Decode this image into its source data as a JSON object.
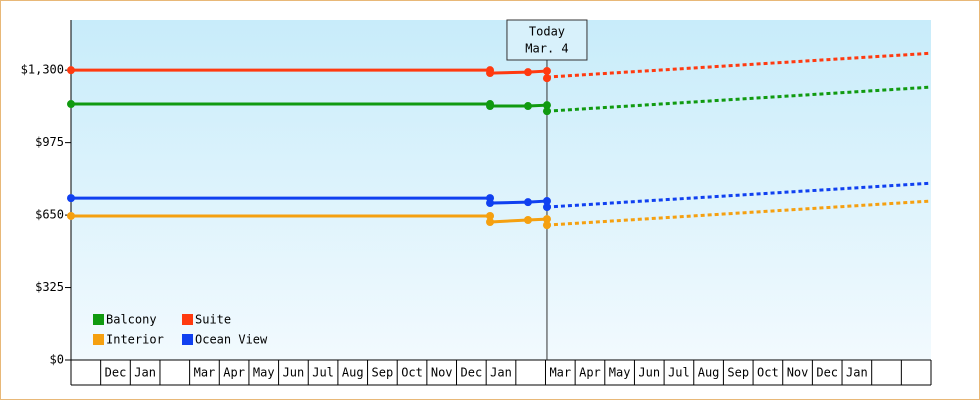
{
  "chart_data": {
    "type": "line",
    "categories": [
      null,
      "Dec",
      "Jan",
      null,
      "Mar",
      "Apr",
      "May",
      "Jun",
      "Jul",
      "Aug",
      "Sep",
      "Oct",
      "Nov",
      "Dec",
      "Jan",
      null,
      "Mar",
      "Apr",
      "May",
      "Jun",
      "Jul",
      "Aug",
      "Sep",
      "Oct",
      "Nov",
      "Dec",
      "Jan",
      null,
      null
    ],
    "xlim": [
      0,
      29
    ],
    "ylim": [
      0,
      1525
    ],
    "yticks": [
      {
        "value": 0,
        "label": "$0"
      },
      {
        "value": 325,
        "label": "$325"
      },
      {
        "value": 650,
        "label": "$650"
      },
      {
        "value": 975,
        "label": "$975"
      },
      {
        "value": 1300,
        "label": "$1,300"
      }
    ],
    "x": [
      0,
      14.13,
      14.13,
      15.41,
      16.05,
      16.05
    ],
    "forecast_x": [
      16.05,
      29
    ],
    "series": [
      {
        "name": "Balcony",
        "color": "#109a10",
        "values": [
          1148,
          1148,
          1139,
          1139,
          1143,
          1116
        ],
        "forecast_values": [
          1116,
          1224
        ]
      },
      {
        "name": "Suite",
        "color": "#ff3a10",
        "values": [
          1300,
          1300,
          1287,
          1291,
          1296,
          1264
        ],
        "forecast_values": [
          1269,
          1376
        ]
      },
      {
        "name": "Interior",
        "color": "#f5a010",
        "values": [
          646,
          646,
          619,
          628,
          632,
          605
        ],
        "forecast_values": [
          605,
          713
        ]
      },
      {
        "name": "Ocean View",
        "color": "#1040f0",
        "values": [
          726,
          726,
          704,
          708,
          713,
          686
        ],
        "forecast_values": [
          686,
          793
        ]
      }
    ],
    "annotations": [
      {
        "x": 16.05,
        "lines": [
          "Today",
          "Mar. 4"
        ]
      }
    ]
  }
}
